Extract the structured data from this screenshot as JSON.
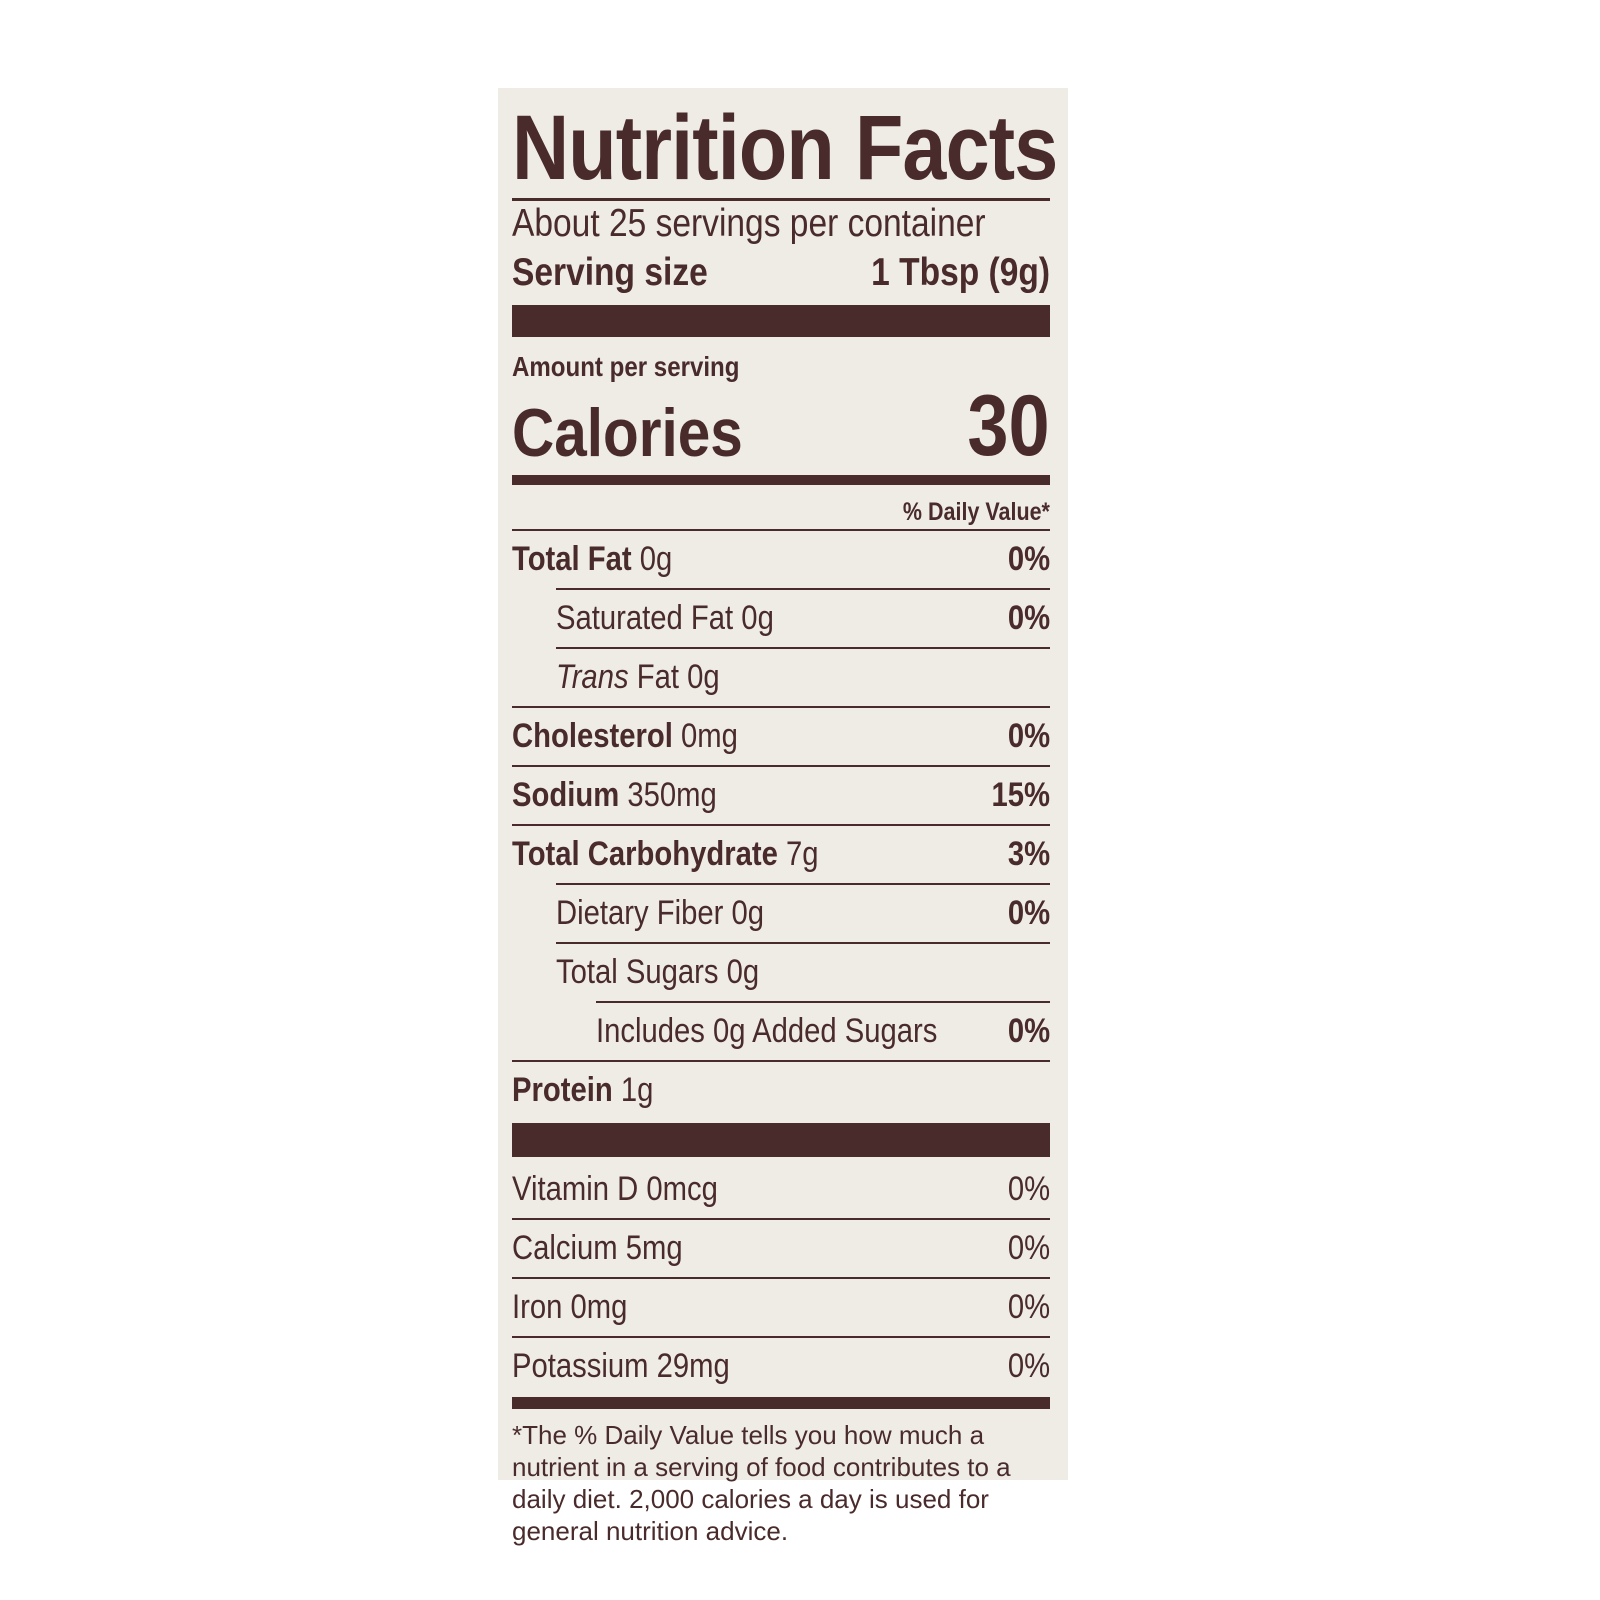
{
  "label": {
    "title": "Nutrition Facts",
    "servings_per_container": "About 25 servings per container",
    "serving_size_label": "Serving size",
    "serving_size_value": "1 Tbsp (9g)",
    "amount_per_serving": "Amount per serving",
    "calories_label": "Calories",
    "calories_value": "30",
    "daily_value_header": "% Daily Value*",
    "nutrients": [
      {
        "name": "Total Fat",
        "amount": "0g",
        "dv": "0%"
      },
      {
        "name": "Saturated Fat",
        "amount": "0g",
        "dv": "0%"
      },
      {
        "name": "Trans",
        "name_rest": "Fat",
        "amount": "0g",
        "dv": ""
      },
      {
        "name": "Cholesterol",
        "amount": "0mg",
        "dv": "0%"
      },
      {
        "name": "Sodium",
        "amount": "350mg",
        "dv": "15%"
      },
      {
        "name": "Total Carbohydrate",
        "amount": "7g",
        "dv": "3%"
      },
      {
        "name": "Dietary Fiber",
        "amount": "0g",
        "dv": "0%"
      },
      {
        "name": "Total Sugars",
        "amount": "0g",
        "dv": ""
      },
      {
        "name": "Includes 0g Added Sugars",
        "amount": "",
        "dv": "0%"
      },
      {
        "name": "Protein",
        "amount": "1g",
        "dv": ""
      }
    ],
    "vitamins": [
      {
        "name": "Vitamin D",
        "amount": "0mcg",
        "dv": "0%"
      },
      {
        "name": "Calcium",
        "amount": "5mg",
        "dv": "0%"
      },
      {
        "name": "Iron",
        "amount": "0mg",
        "dv": "0%"
      },
      {
        "name": "Potassium",
        "amount": "29mg",
        "dv": "0%"
      }
    ],
    "footnote": "*The % Daily Value tells you how much a nutrient in a serving of food contributes to a daily diet. 2,000 calories a day is used for general nutrition advice."
  },
  "colors": {
    "ink": "#4a2b2c",
    "background": "#efece6"
  }
}
